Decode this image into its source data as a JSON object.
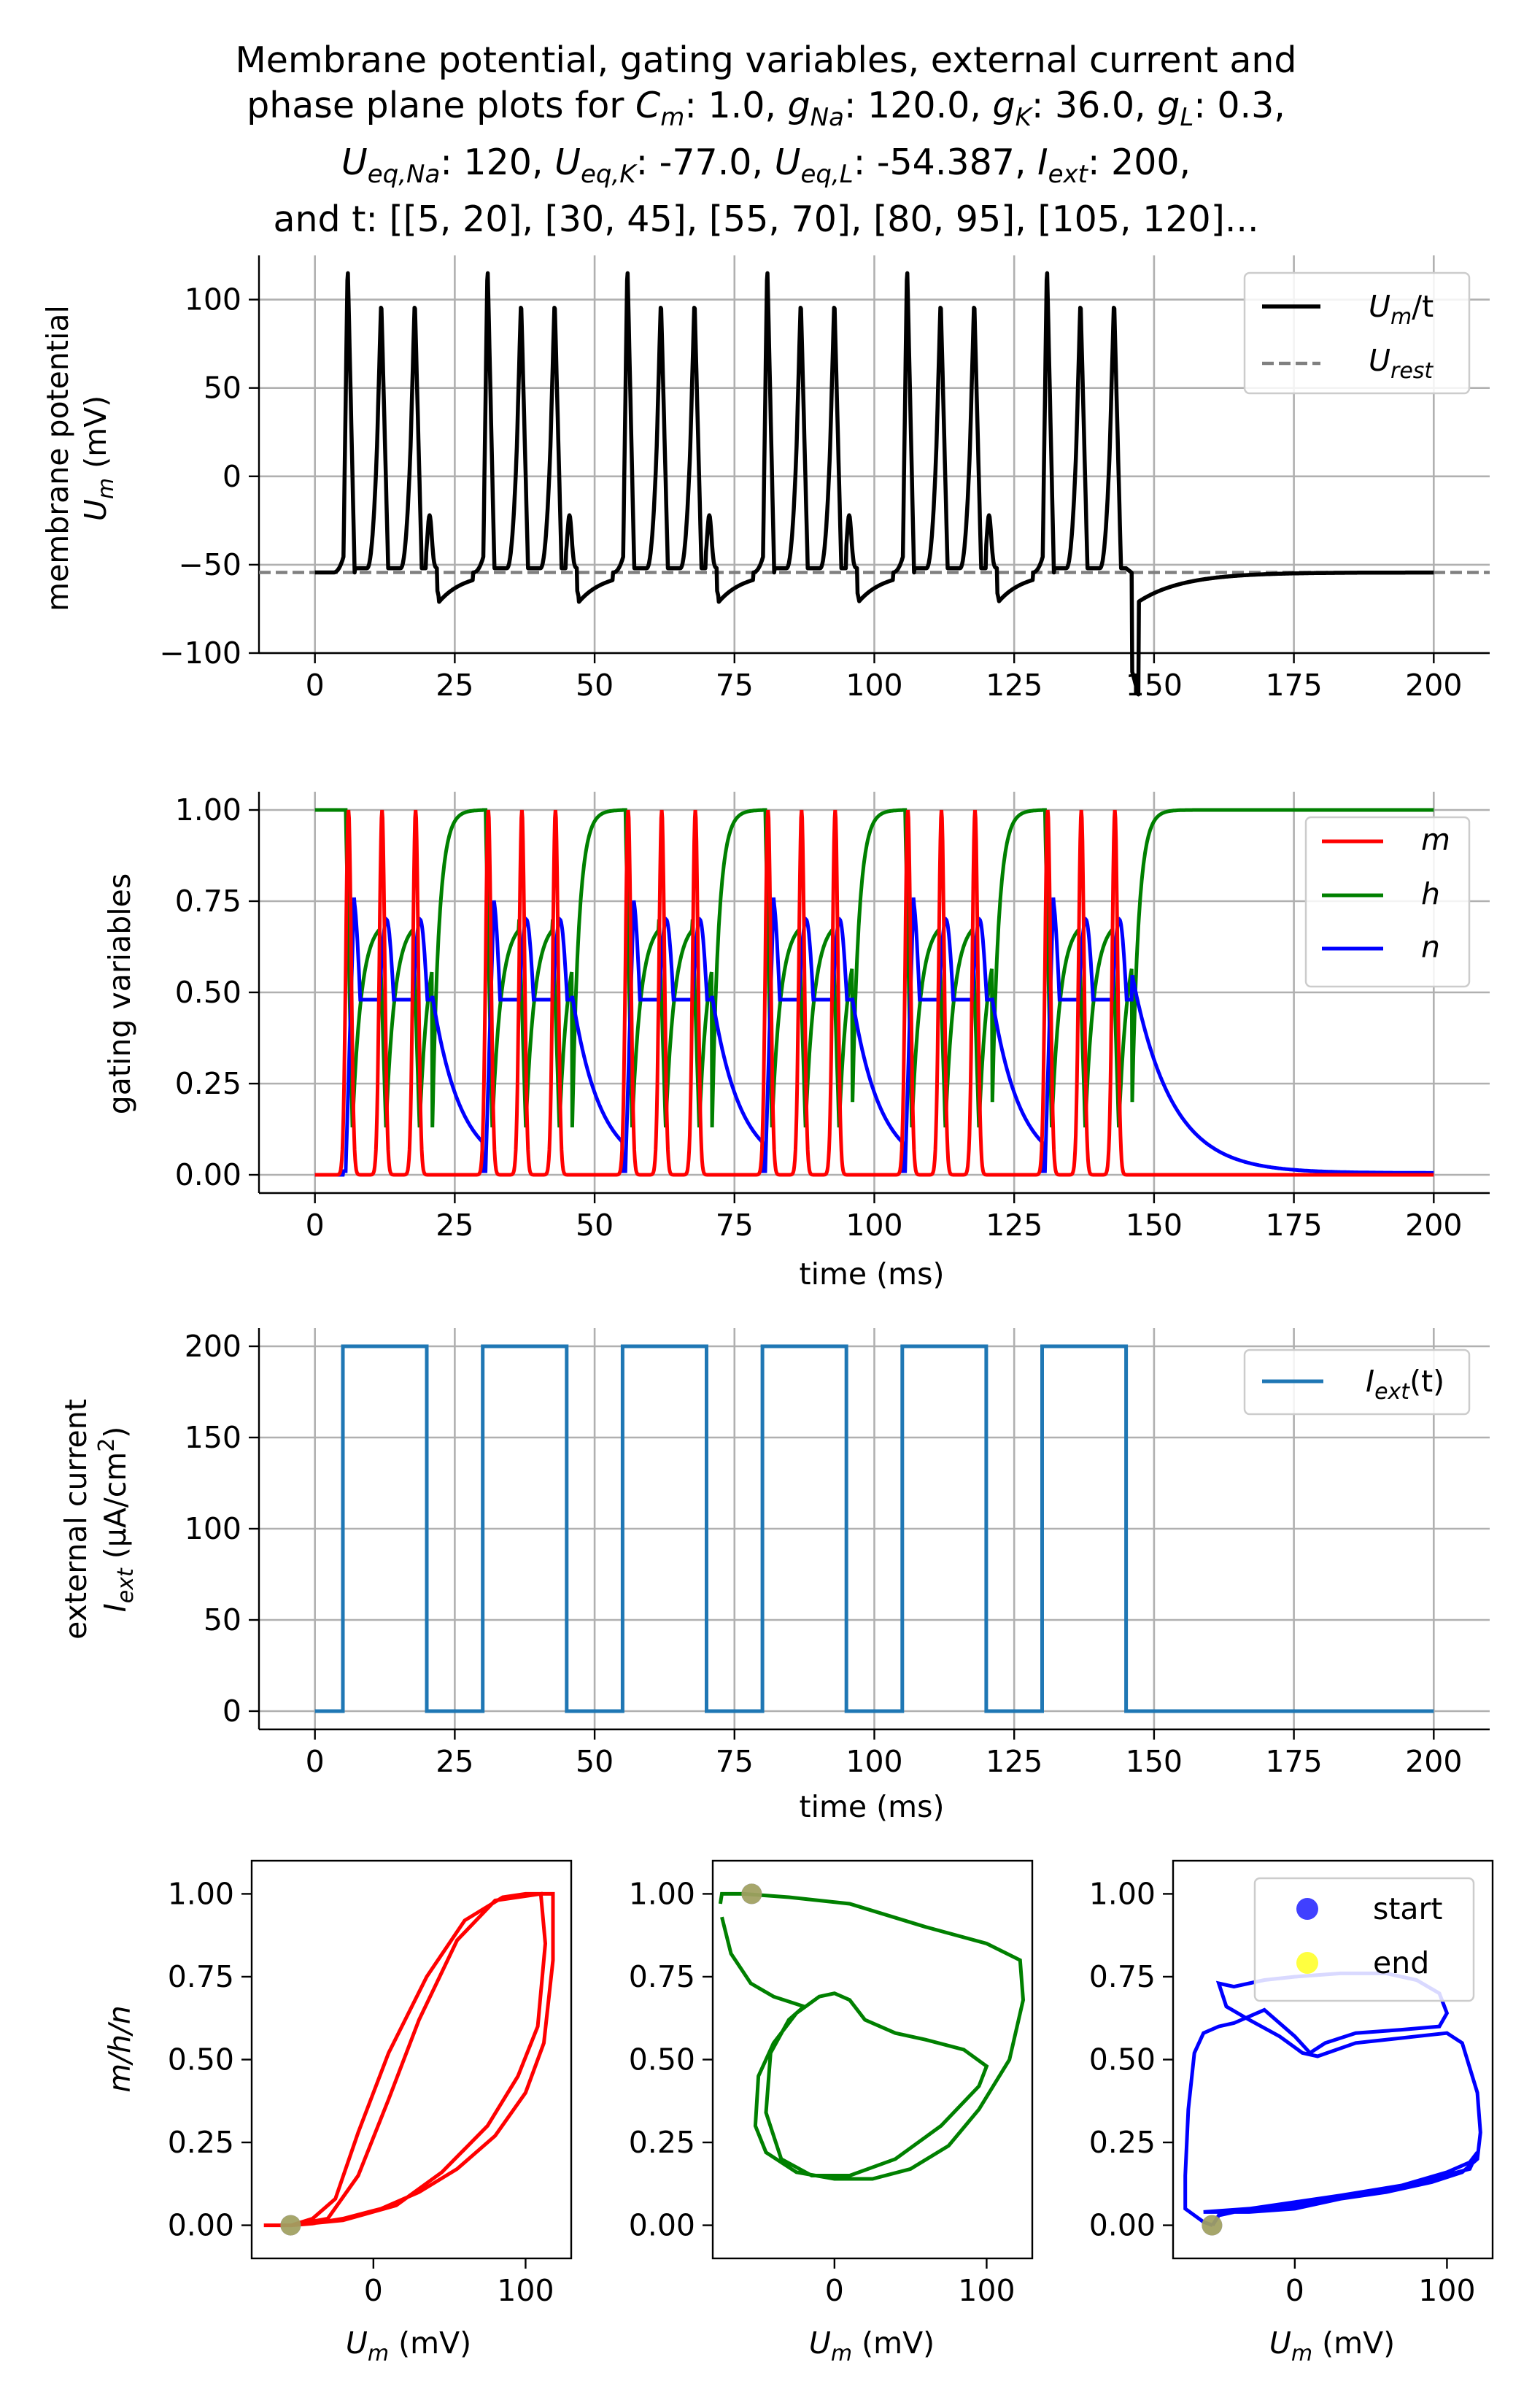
{
  "title": {
    "line1": "Membrane potential, gating variables, external current and",
    "line2_prefix": "phase plane plots for ",
    "Cm_label": "C",
    "Cm_sub": "m",
    "Cm_val": ": 1.0, ",
    "gNa_label": "g",
    "gNa_sub": "Na",
    "gNa_val": ": 120.0, ",
    "gK_label": "g",
    "gK_sub": "K",
    "gK_val": ": 36.0, ",
    "gL_label": "g",
    "gL_sub": "L",
    "gL_val": ": 0.3,",
    "UNa_label": "U",
    "UNa_sub": "eq,Na",
    "UNa_val": ": 120, ",
    "UK_label": "U",
    "UK_sub": "eq,K",
    "UK_val": ": -77.0, ",
    "UL_label": "U",
    "UL_sub": "eq,L",
    "UL_val": ": -54.387, ",
    "Iext_label": "I",
    "Iext_sub": "ext",
    "Iext_val": ": 200,",
    "line4": "and t: [[5, 20], [30, 45], [55, 70], [80, 95], [105, 120]..."
  },
  "chart_data": [
    {
      "type": "line",
      "name": "membrane-potential",
      "ylabel_line1": "membrane potential",
      "ylabel_line2_var": "U",
      "ylabel_line2_sub": "m",
      "ylabel_line2_unit": " (mV)",
      "xlim": [
        -10,
        210
      ],
      "ylim": [
        -100,
        125
      ],
      "xticks": [
        0,
        25,
        50,
        75,
        100,
        125,
        150,
        175,
        200
      ],
      "yticks": [
        100,
        50,
        0,
        -50,
        -100
      ],
      "ytick_labels": [
        "100",
        "50",
        "0",
        "−50",
        "−100"
      ],
      "spike_times": [
        5.5,
        11.5,
        17.5,
        30.5,
        36.5,
        42.5,
        55.5,
        61.5,
        67.5,
        80.5,
        86.5,
        92.5,
        105.5,
        111.5,
        117.5,
        130.5,
        136.5,
        142.5
      ],
      "stim_intervals": [
        [
          5,
          20
        ],
        [
          30,
          45
        ],
        [
          55,
          70
        ],
        [
          80,
          95
        ],
        [
          105,
          120
        ],
        [
          130,
          145
        ]
      ],
      "first_spike_peak": 122,
      "later_spike_peak": 101,
      "rest_potential": -54.4,
      "afterhyperpolarization_min": -71,
      "series": [
        {
          "name": "U_m/t",
          "legend_var": "U",
          "legend_sub": "m",
          "legend_tail": "/t",
          "color": "#000000",
          "style": "solid"
        },
        {
          "name": "U_rest",
          "legend_var": "U",
          "legend_sub": "rest",
          "value": -54.4,
          "color": "#808080",
          "style": "dashed"
        }
      ]
    },
    {
      "type": "line",
      "name": "gating-variables",
      "ylabel": "gating variables",
      "xlabel": "time (ms)",
      "xlim": [
        -10,
        210
      ],
      "ylim": [
        -0.05,
        1.05
      ],
      "xticks": [
        0,
        25,
        50,
        75,
        100,
        125,
        150,
        175,
        200
      ],
      "yticks": [
        1.0,
        0.75,
        0.5,
        0.25,
        0.0
      ],
      "ytick_labels": [
        "1.00",
        "0.75",
        "0.50",
        "0.25",
        "0.00"
      ],
      "resting_values": {
        "m": 0.0,
        "h": 1.0,
        "n": 0.0
      },
      "spike_extremes": {
        "m_max": 1.0,
        "h_min": 0.13,
        "n_first_peak": 0.76,
        "n_trough": 0.48,
        "n_later_peak": 0.7
      },
      "series": [
        {
          "name": "m",
          "color": "#ff0000"
        },
        {
          "name": "h",
          "color": "#008000"
        },
        {
          "name": "n",
          "color": "#0000ff"
        }
      ]
    },
    {
      "type": "line",
      "name": "external-current",
      "ylabel_line1": "external current",
      "ylabel_line2_var": "I",
      "ylabel_line2_sub": "ext",
      "ylabel_line2_unit": " (µA/cm",
      "ylabel_line2_sup": "2",
      "ylabel_line2_close": ")",
      "xlabel": "time (ms)",
      "xlim": [
        -10,
        210
      ],
      "ylim": [
        -10,
        210
      ],
      "xticks": [
        0,
        25,
        50,
        75,
        100,
        125,
        150,
        175,
        200
      ],
      "yticks": [
        200,
        150,
        100,
        50,
        0
      ],
      "amplitude": 200,
      "intervals": [
        [
          5,
          20
        ],
        [
          30,
          45
        ],
        [
          55,
          70
        ],
        [
          80,
          95
        ],
        [
          105,
          120
        ],
        [
          130,
          145
        ]
      ],
      "series": [
        {
          "name": "I_ext(t)",
          "legend_var": "I",
          "legend_sub": "ext",
          "legend_tail": "(t)",
          "color": "#1f77b4"
        }
      ]
    },
    {
      "type": "line",
      "name": "phase-plane-m",
      "ylabel_var": "m/h/n",
      "xlabel_var": "U",
      "xlabel_sub": "m",
      "xlabel_unit": " (mV)",
      "xlim": [
        -80,
        130
      ],
      "ylim": [
        -0.1,
        1.1
      ],
      "xticks": [
        0,
        100
      ],
      "yticks": [
        1.0,
        0.75,
        0.5,
        0.25,
        0.0
      ],
      "ytick_labels": [
        "1.00",
        "0.75",
        "0.50",
        "0.25",
        "0.00"
      ],
      "color": "#ff0000",
      "start": [
        -54.4,
        0.0
      ],
      "end": [
        -54.4,
        0.0
      ]
    },
    {
      "type": "line",
      "name": "phase-plane-h",
      "xlabel_var": "U",
      "xlabel_sub": "m",
      "xlabel_unit": " (mV)",
      "xlim": [
        -80,
        130
      ],
      "ylim": [
        -0.1,
        1.1
      ],
      "xticks": [
        0,
        100
      ],
      "yticks": [
        1.0,
        0.75,
        0.5,
        0.25,
        0.0
      ],
      "ytick_labels": [
        "1.00",
        "0.75",
        "0.50",
        "0.25",
        "0.00"
      ],
      "color": "#008000",
      "start": [
        -54.4,
        1.0
      ],
      "end": [
        -54.4,
        1.0
      ]
    },
    {
      "type": "line",
      "name": "phase-plane-n",
      "xlabel_var": "U",
      "xlabel_sub": "m",
      "xlabel_unit": " (mV)",
      "xlim": [
        -80,
        130
      ],
      "ylim": [
        -0.1,
        1.1
      ],
      "xticks": [
        0,
        100
      ],
      "yticks": [
        1.0,
        0.75,
        0.5,
        0.25,
        0.0
      ],
      "ytick_labels": [
        "1.00",
        "0.75",
        "0.50",
        "0.25",
        "0.00"
      ],
      "color": "#0000ff",
      "start": [
        -54.4,
        0.0
      ],
      "end": [
        -54.4,
        0.0
      ],
      "legend": [
        {
          "label": "start",
          "color": "#0000ff"
        },
        {
          "label": "end",
          "color": "#ffff00"
        }
      ]
    }
  ]
}
